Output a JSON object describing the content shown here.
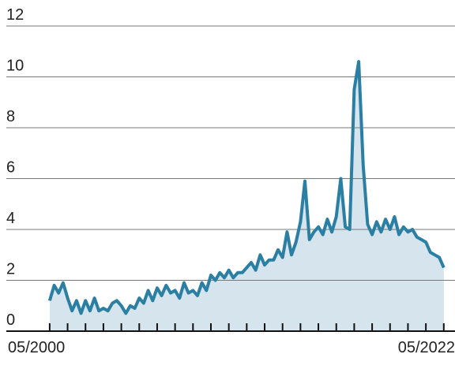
{
  "chart_data": {
    "type": "area-line",
    "color": "#2a7fa3",
    "fill": "#d5e4ed",
    "grid": true,
    "xlim": [
      2000,
      2023
    ],
    "ylim": [
      0,
      13
    ],
    "yticks": [
      0,
      2,
      4,
      6,
      8,
      10,
      12
    ],
    "xticks": [
      {
        "value": 2000.33,
        "label": "05/2000"
      },
      {
        "value": 2001.33,
        "label": null
      },
      {
        "value": 2002.33,
        "label": null
      },
      {
        "value": 2003.33,
        "label": null
      },
      {
        "value": 2004.33,
        "label": null
      },
      {
        "value": 2005.33,
        "label": null
      },
      {
        "value": 2006.33,
        "label": null
      },
      {
        "value": 2007.33,
        "label": null
      },
      {
        "value": 2008.33,
        "label": null
      },
      {
        "value": 2009.33,
        "label": null
      },
      {
        "value": 2010.33,
        "label": null
      },
      {
        "value": 2011.33,
        "label": null
      },
      {
        "value": 2012.33,
        "label": null
      },
      {
        "value": 2013.33,
        "label": null
      },
      {
        "value": 2014.33,
        "label": null
      },
      {
        "value": 2015.33,
        "label": null
      },
      {
        "value": 2016.33,
        "label": null
      },
      {
        "value": 2017.33,
        "label": null
      },
      {
        "value": 2018.33,
        "label": null
      },
      {
        "value": 2019.33,
        "label": null
      },
      {
        "value": 2020.33,
        "label": null
      },
      {
        "value": 2021.33,
        "label": null
      },
      {
        "value": 2022.33,
        "label": "05/2022"
      }
    ],
    "x": [
      2000.33,
      2000.58,
      2000.83,
      2001.08,
      2001.33,
      2001.58,
      2001.83,
      2002.08,
      2002.33,
      2002.58,
      2002.83,
      2003.08,
      2003.33,
      2003.58,
      2003.83,
      2004.08,
      2004.33,
      2004.58,
      2004.83,
      2005.08,
      2005.33,
      2005.58,
      2005.83,
      2006.08,
      2006.33,
      2006.58,
      2006.83,
      2007.08,
      2007.33,
      2007.58,
      2007.83,
      2008.08,
      2008.33,
      2008.58,
      2008.83,
      2009.08,
      2009.33,
      2009.58,
      2009.83,
      2010.08,
      2010.33,
      2010.58,
      2010.83,
      2011.08,
      2011.33,
      2011.58,
      2011.83,
      2012.08,
      2012.33,
      2012.58,
      2012.83,
      2013.08,
      2013.33,
      2013.58,
      2013.83,
      2014.08,
      2014.33,
      2014.58,
      2014.83,
      2015.08,
      2015.33,
      2015.58,
      2015.83,
      2016.08,
      2016.33,
      2016.58,
      2016.83,
      2017.08,
      2017.33,
      2017.58,
      2017.83,
      2018.08,
      2018.33,
      2018.58,
      2018.83,
      2019.08,
      2019.33,
      2019.58,
      2019.83,
      2020.08,
      2020.33,
      2020.58,
      2020.83,
      2021.08,
      2021.33,
      2021.58,
      2021.83,
      2022.08,
      2022.33
    ],
    "values": [
      1.2,
      1.8,
      1.5,
      1.9,
      1.3,
      0.8,
      1.2,
      0.7,
      1.2,
      0.8,
      1.3,
      0.8,
      0.9,
      0.8,
      1.1,
      1.2,
      1.0,
      0.7,
      1.0,
      0.9,
      1.3,
      1.1,
      1.6,
      1.2,
      1.7,
      1.4,
      1.8,
      1.5,
      1.6,
      1.3,
      1.9,
      1.5,
      1.6,
      1.4,
      1.9,
      1.6,
      2.2,
      2.0,
      2.3,
      2.1,
      2.4,
      2.1,
      2.3,
      2.3,
      2.5,
      2.7,
      2.4,
      3.0,
      2.6,
      2.8,
      2.8,
      3.2,
      2.9,
      3.9,
      3.0,
      3.5,
      4.3,
      5.9,
      3.6,
      3.9,
      4.1,
      3.8,
      4.4,
      3.9,
      4.5,
      6.0,
      4.1,
      4.0,
      9.5,
      10.6,
      6.5,
      4.2,
      3.8,
      4.3,
      3.9,
      4.4,
      4.0,
      4.5,
      3.8,
      4.1,
      3.9,
      4.0,
      3.7,
      3.6,
      3.5,
      3.1,
      3.0,
      2.9,
      2.5
    ]
  }
}
